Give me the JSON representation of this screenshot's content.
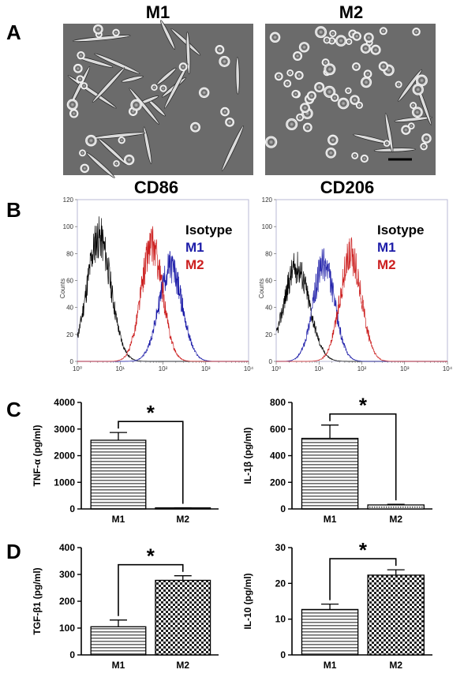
{
  "panels": {
    "A": {
      "letter": "A",
      "images": [
        {
          "title": "M1"
        },
        {
          "title": "M2"
        }
      ]
    },
    "B": {
      "letter": "B",
      "legend": {
        "isotype": {
          "label": "Isotype",
          "color": "#000000"
        },
        "m1": {
          "label": "M1",
          "color": "#1c1ca8"
        },
        "m2": {
          "label": "M2",
          "color": "#cc1f1f"
        }
      }
    },
    "C": {
      "letter": "C"
    },
    "D": {
      "letter": "D"
    }
  },
  "chart_data": [
    {
      "type": "line",
      "title": "CD86",
      "xlabel": "",
      "ylabel": "Counts",
      "xscale": "log",
      "xlim": [
        1,
        10000
      ],
      "x_ticks": [
        "10⁰",
        "10¹",
        "10²",
        "10³",
        "10⁴"
      ],
      "ylim": [
        0,
        120
      ],
      "y_ticks": [
        0,
        20,
        40,
        60,
        80,
        100,
        120
      ],
      "legend_position": "top-right",
      "series": [
        {
          "name": "Isotype",
          "color": "#000000",
          "peak_x": 3.2,
          "peak_y": 92,
          "width": 0.28
        },
        {
          "name": "M1",
          "color": "#1c1ca8",
          "peak_x": 150,
          "peak_y": 70,
          "width": 0.27
        },
        {
          "name": "M2",
          "color": "#cc1f1f",
          "peak_x": 55,
          "peak_y": 86,
          "width": 0.25
        }
      ]
    },
    {
      "type": "line",
      "title": "CD206",
      "xlabel": "",
      "ylabel": "Counts",
      "xscale": "log",
      "xlim": [
        1,
        10000
      ],
      "x_ticks": [
        "10⁰",
        "10¹",
        "10²",
        "10³",
        "10⁴"
      ],
      "ylim": [
        0,
        120
      ],
      "y_ticks": [
        0,
        20,
        40,
        60,
        80,
        100,
        120
      ],
      "legend_position": "top-right",
      "series": [
        {
          "name": "Isotype",
          "color": "#000000",
          "peak_x": 3,
          "peak_y": 70,
          "width": 0.3
        },
        {
          "name": "M1",
          "color": "#1c1ca8",
          "peak_x": 13,
          "peak_y": 72,
          "width": 0.25
        },
        {
          "name": "M2",
          "color": "#cc1f1f",
          "peak_x": 55,
          "peak_y": 78,
          "width": 0.25
        }
      ]
    },
    {
      "type": "bar",
      "categories": [
        "M1",
        "M2"
      ],
      "values": [
        2580,
        40
      ],
      "errors": [
        290,
        5
      ],
      "ylabel": "TNF-α (pg/ml)",
      "ylim": [
        0,
        4000
      ],
      "y_ticks": [
        0,
        1000,
        2000,
        3000,
        4000
      ],
      "significance": "*",
      "patterns": [
        "hstripe",
        "dots"
      ]
    },
    {
      "type": "bar",
      "categories": [
        "M1",
        "M2"
      ],
      "values": [
        530,
        30
      ],
      "errors": [
        100,
        5
      ],
      "ylabel": "IL-1β (pg/ml)",
      "ylim": [
        0,
        800
      ],
      "y_ticks": [
        0,
        200,
        400,
        600,
        800
      ],
      "significance": "*",
      "patterns": [
        "hstripe",
        "dots"
      ]
    },
    {
      "type": "bar",
      "categories": [
        "M1",
        "M2"
      ],
      "values": [
        105,
        278
      ],
      "errors": [
        25,
        17
      ],
      "ylabel": "TGF-β1 (pg/ml)",
      "ylim": [
        0,
        400
      ],
      "y_ticks": [
        0,
        100,
        200,
        300,
        400
      ],
      "significance": "*",
      "patterns": [
        "hstripe",
        "checker"
      ]
    },
    {
      "type": "bar",
      "categories": [
        "M1",
        "M2"
      ],
      "values": [
        12.7,
        22.3
      ],
      "errors": [
        1.5,
        1.5
      ],
      "ylabel": "IL-10 (pg/ml)",
      "ylim": [
        0,
        30
      ],
      "y_ticks": [
        0,
        10,
        20,
        30
      ],
      "significance": "*",
      "patterns": [
        "hstripe",
        "checker"
      ]
    }
  ]
}
